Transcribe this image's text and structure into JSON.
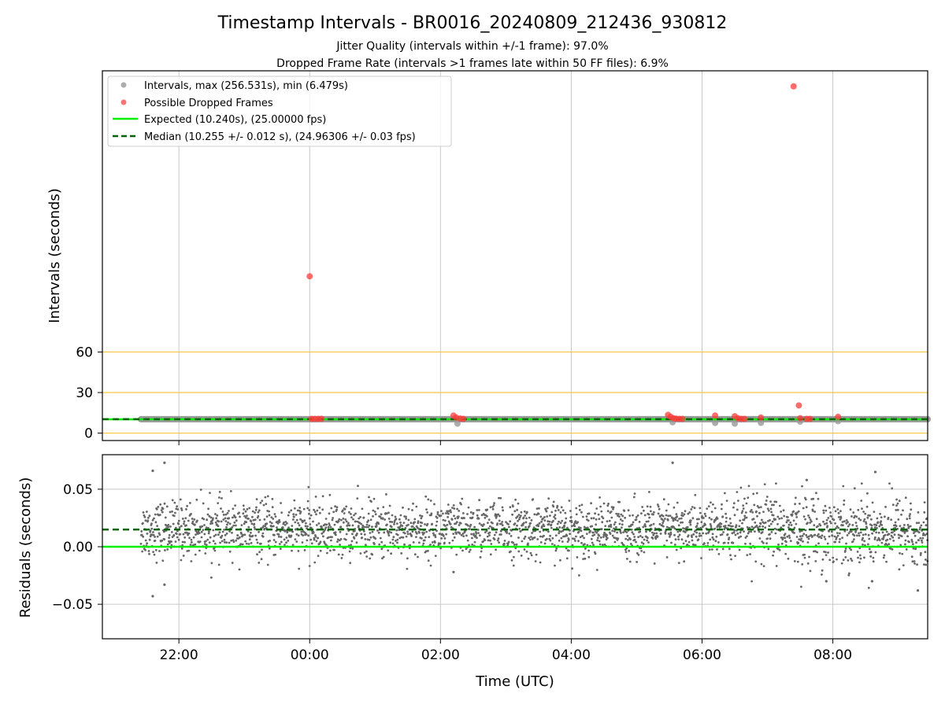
{
  "title": "Timestamp Intervals - BR0016_20240809_212436_930812",
  "subtitle_line1": "Jitter Quality (intervals within +/-1 frame): 97.0%",
  "subtitle_line2": "Dropped Frame Rate (intervals >1 frames late within 50 FF files): 6.9%",
  "colors": {
    "intervals": "#999999",
    "dropped": "#ff3b3b",
    "expected": "#00ee00",
    "median": "#006400",
    "threshold": "#f5c542",
    "grid": "#c8c8c8",
    "residual": "#666666"
  },
  "chart_data": [
    {
      "type": "scatter",
      "name": "intervals",
      "xlabel": "",
      "ylabel": "Intervals (seconds)",
      "y_ticks": [
        0,
        30,
        60
      ],
      "y_tick_labels": [
        "0",
        "30",
        "60"
      ],
      "threshold_lines": [
        0,
        30,
        60
      ],
      "x_range_hours": [
        20.83,
        33.45
      ],
      "x_ticks_hours": [
        22,
        24,
        26,
        28,
        30,
        32
      ],
      "x_tick_labels": [
        "22:00",
        "00:00",
        "02:00",
        "04:00",
        "06:00",
        "08:00"
      ],
      "series_range_hours": [
        21.42,
        33.45
      ],
      "expected": 10.24,
      "median": 10.255,
      "dropped_points": [
        [
          24.0,
          116.0
        ],
        [
          24.03,
          10.5
        ],
        [
          24.08,
          10.5
        ],
        [
          24.13,
          10.5
        ],
        [
          24.18,
          10.6
        ],
        [
          26.2,
          13.0
        ],
        [
          26.24,
          11.5
        ],
        [
          26.3,
          10.8
        ],
        [
          26.35,
          10.5
        ],
        [
          29.48,
          13.5
        ],
        [
          29.52,
          12.0
        ],
        [
          29.56,
          11.0
        ],
        [
          29.6,
          10.7
        ],
        [
          29.65,
          10.5
        ],
        [
          29.7,
          10.5
        ],
        [
          30.2,
          13.0
        ],
        [
          30.5,
          12.5
        ],
        [
          30.55,
          11.0
        ],
        [
          30.6,
          10.5
        ],
        [
          30.65,
          10.5
        ],
        [
          30.9,
          11.5
        ],
        [
          31.4,
          256.5
        ],
        [
          31.48,
          20.5
        ],
        [
          31.5,
          11.0
        ],
        [
          31.6,
          10.5
        ],
        [
          31.65,
          10.5
        ],
        [
          32.08,
          12.0
        ]
      ],
      "legend": [
        "Intervals, max (256.531s), min (6.479s)",
        "Possible Dropped Frames",
        "Expected (10.240s), (25.00000 fps)",
        "Median (10.255 +/- 0.012 s), (24.96306 +/- 0.03 fps)"
      ],
      "legend_position": "top-left",
      "grid": "x"
    },
    {
      "type": "scatter",
      "name": "residuals",
      "xlabel": "Time (UTC)",
      "ylabel": "Residuals (seconds)",
      "y_range": [
        -0.08,
        0.08
      ],
      "y_ticks": [
        -0.05,
        0.0,
        0.05
      ],
      "y_tick_labels": [
        "−0.05",
        "0.00",
        "0.05"
      ],
      "x_range_hours": [
        20.83,
        33.45
      ],
      "x_ticks_hours": [
        22,
        24,
        26,
        28,
        30,
        32
      ],
      "x_tick_labels": [
        "22:00",
        "00:00",
        "02:00",
        "04:00",
        "06:00",
        "08:00"
      ],
      "expected_residual": 0.0,
      "median_residual": 0.015,
      "residual_mean": 0.015,
      "residual_spread": 0.012,
      "outliers": [
        [
          21.6,
          0.066
        ],
        [
          21.78,
          0.073
        ],
        [
          21.6,
          -0.043
        ],
        [
          21.78,
          -0.033
        ],
        [
          29.55,
          0.073
        ],
        [
          31.6,
          0.058
        ],
        [
          32.65,
          0.065
        ],
        [
          31.9,
          -0.03
        ],
        [
          32.6,
          -0.03
        ],
        [
          33.3,
          -0.038
        ],
        [
          26.2,
          -0.022
        ]
      ],
      "grid": "both"
    }
  ]
}
